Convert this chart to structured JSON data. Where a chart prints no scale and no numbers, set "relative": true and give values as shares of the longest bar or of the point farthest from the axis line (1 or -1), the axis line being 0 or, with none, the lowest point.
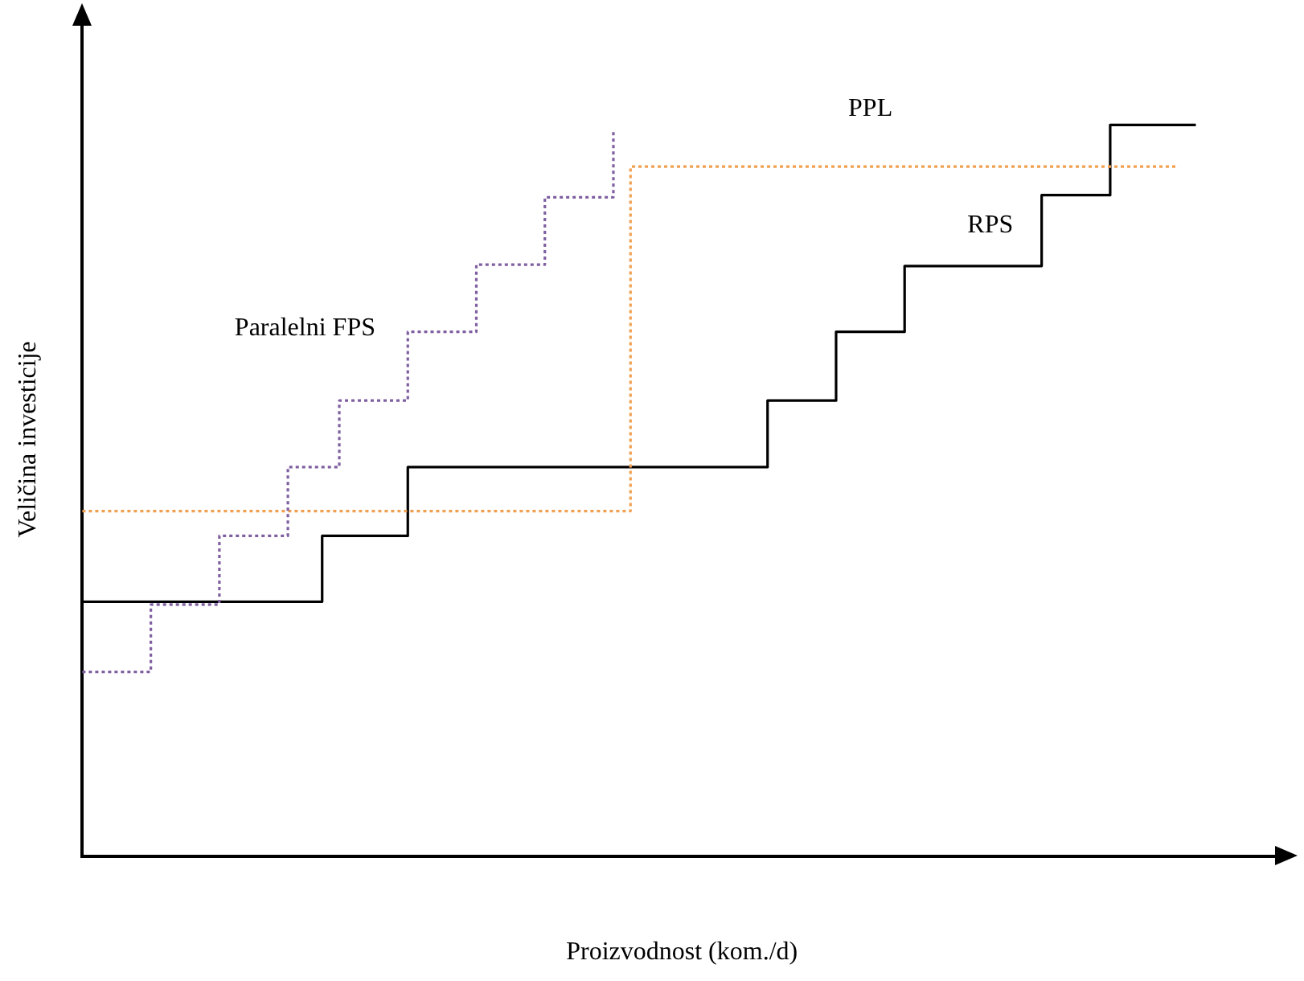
{
  "chart_data": {
    "type": "step",
    "xlabel": "Proizvodnost (kom./d)",
    "ylabel": "Veličina investicije",
    "relative": true,
    "grid": false,
    "legend": false,
    "marker": "none",
    "categories": [
      null,
      null,
      null,
      null,
      null,
      null,
      null,
      null,
      null,
      null,
      null,
      null,
      null,
      null,
      null,
      null,
      null,
      null,
      null,
      null,
      null,
      null,
      null,
      null,
      null,
      null,
      null,
      null,
      null,
      null,
      null,
      null,
      null,
      null,
      null,
      null,
      null,
      null,
      null,
      null,
      null,
      null,
      null,
      null,
      null,
      null,
      null,
      null,
      null,
      null,
      null,
      null,
      null,
      null,
      null,
      null,
      null,
      null,
      null,
      null,
      null,
      null,
      null,
      null,
      null,
      null,
      null,
      null,
      null,
      null,
      null
    ],
    "series": [
      {
        "name": "Paralelni FPS",
        "color": "#7f5fa0",
        "line_style": "dotted",
        "values": [
          0.252,
          0.252,
          0.252,
          0.252,
          0.344,
          0.344,
          0.344,
          0.344,
          0.438,
          0.438,
          0.438,
          0.438,
          0.532,
          0.532,
          0.532,
          0.623,
          0.623,
          0.623,
          0.623,
          0.717,
          0.717,
          0.717,
          0.717,
          0.809,
          0.809,
          0.809,
          0.809,
          0.901,
          0.901,
          0.901,
          0.901,
          0.994,
          null,
          null,
          null,
          null,
          null,
          null,
          null,
          null,
          null,
          null,
          null,
          null,
          null,
          null,
          null,
          null,
          null,
          null,
          null,
          null,
          null,
          null,
          null,
          null,
          null,
          null,
          null,
          null,
          null,
          null,
          null,
          null,
          null,
          null,
          null,
          null,
          null,
          null,
          null
        ]
      },
      {
        "name": "PPL",
        "color": "#f0a050",
        "line_style": "dotted",
        "values": [
          0.472,
          0.472,
          0.472,
          0.472,
          0.472,
          0.472,
          0.472,
          0.472,
          0.472,
          0.472,
          0.472,
          0.472,
          0.472,
          0.472,
          0.472,
          0.472,
          0.472,
          0.472,
          0.472,
          0.472,
          0.472,
          0.472,
          0.472,
          0.472,
          0.472,
          0.472,
          0.472,
          0.472,
          0.472,
          0.472,
          0.472,
          0.472,
          0.943,
          0.943,
          0.943,
          0.943,
          0.943,
          0.943,
          0.943,
          0.943,
          0.943,
          0.943,
          0.943,
          0.943,
          0.943,
          0.943,
          0.943,
          0.943,
          0.943,
          0.943,
          0.943,
          0.943,
          0.943,
          0.943,
          0.943,
          0.943,
          0.943,
          0.943,
          0.943,
          0.943,
          0.943,
          0.943,
          0.943,
          0.943,
          0.943,
          null,
          null,
          null,
          null,
          null,
          null
        ]
      },
      {
        "name": "RPS",
        "color": "#000000",
        "line_style": "solid",
        "values": [
          0.348,
          0.348,
          0.348,
          0.348,
          0.348,
          0.348,
          0.348,
          0.348,
          0.348,
          0.348,
          0.348,
          0.348,
          0.348,
          0.348,
          0.438,
          0.438,
          0.438,
          0.438,
          0.438,
          0.532,
          0.532,
          0.532,
          0.532,
          0.532,
          0.532,
          0.532,
          0.532,
          0.532,
          0.532,
          0.532,
          0.532,
          0.532,
          0.532,
          0.532,
          0.532,
          0.532,
          0.532,
          0.532,
          0.532,
          0.532,
          0.623,
          0.623,
          0.623,
          0.623,
          0.717,
          0.717,
          0.717,
          0.717,
          0.807,
          0.807,
          0.807,
          0.807,
          0.807,
          0.807,
          0.807,
          0.807,
          0.904,
          0.904,
          0.904,
          0.904,
          1.0,
          1.0,
          1.0,
          1.0,
          1.0,
          1.0,
          null,
          null,
          null,
          null,
          null
        ]
      }
    ]
  }
}
